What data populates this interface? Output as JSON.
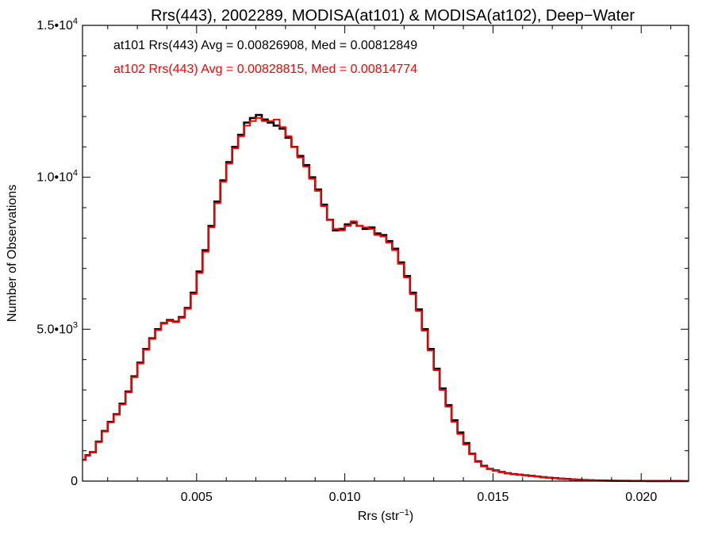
{
  "chart_data": {
    "type": "line",
    "style": "step-histogram",
    "title": "Rrs(443), 2002289, MODISA(at101) & MODISA(at102), Deep−Water",
    "xlabel_base": "Rrs (str",
    "xlabel_sup": "−1",
    "xlabel_close": ")",
    "ylabel": "Number of Observations",
    "xlim": [
      0.00115,
      0.0216
    ],
    "ylim": [
      0,
      15000
    ],
    "x_ticks": [
      {
        "value": 0.005,
        "label": "0.005"
      },
      {
        "value": 0.01,
        "label": "0.010"
      },
      {
        "value": 0.015,
        "label": "0.015"
      },
      {
        "value": 0.02,
        "label": "0.020"
      }
    ],
    "y_ticks": [
      {
        "value": 0,
        "base": "0",
        "exp": ""
      },
      {
        "value": 5000,
        "base": "5.0•10",
        "exp": "3"
      },
      {
        "value": 10000,
        "base": "1.0•10",
        "exp": "4"
      },
      {
        "value": 15000,
        "base": "1.5•10",
        "exp": "4"
      }
    ],
    "annotations": [
      {
        "text": "at101 Rrs(443) Avg = 0.00826908, Med = 0.00812849",
        "color": "#000000"
      },
      {
        "text": "at102 Rrs(443) Avg = 0.00828815, Med = 0.00814774",
        "color": "#ff0000"
      }
    ],
    "series": [
      {
        "color": "#000000",
        "points": [
          [
            0.0012,
            700
          ],
          [
            0.0013,
            850
          ],
          [
            0.0015,
            950
          ],
          [
            0.0017,
            1300
          ],
          [
            0.0019,
            1650
          ],
          [
            0.0021,
            1950
          ],
          [
            0.0023,
            2200
          ],
          [
            0.0025,
            2550
          ],
          [
            0.0027,
            2950
          ],
          [
            0.0029,
            3450
          ],
          [
            0.0031,
            3900
          ],
          [
            0.0033,
            4350
          ],
          [
            0.0035,
            4700
          ],
          [
            0.0037,
            5000
          ],
          [
            0.0039,
            5200
          ],
          [
            0.0041,
            5300
          ],
          [
            0.0043,
            5250
          ],
          [
            0.0045,
            5400
          ],
          [
            0.0047,
            5700
          ],
          [
            0.0049,
            6200
          ],
          [
            0.0051,
            6900
          ],
          [
            0.0053,
            7600
          ],
          [
            0.0055,
            8400
          ],
          [
            0.0057,
            9200
          ],
          [
            0.0059,
            9900
          ],
          [
            0.0061,
            10500
          ],
          [
            0.0063,
            11000
          ],
          [
            0.0065,
            11400
          ],
          [
            0.0067,
            11800
          ],
          [
            0.0069,
            11950
          ],
          [
            0.0071,
            12050
          ],
          [
            0.0073,
            11900
          ],
          [
            0.0075,
            11800
          ],
          [
            0.0077,
            11700
          ],
          [
            0.0079,
            11600
          ],
          [
            0.0081,
            11300
          ],
          [
            0.0083,
            11000
          ],
          [
            0.0085,
            10700
          ],
          [
            0.0087,
            10400
          ],
          [
            0.0089,
            10000
          ],
          [
            0.0091,
            9600
          ],
          [
            0.0093,
            9100
          ],
          [
            0.0095,
            8600
          ],
          [
            0.0097,
            8250
          ],
          [
            0.0099,
            8300
          ],
          [
            0.0101,
            8450
          ],
          [
            0.0103,
            8500
          ],
          [
            0.0105,
            8400
          ],
          [
            0.0107,
            8300
          ],
          [
            0.0109,
            8350
          ],
          [
            0.0111,
            8150
          ],
          [
            0.0113,
            8100
          ],
          [
            0.0115,
            7900
          ],
          [
            0.0117,
            7650
          ],
          [
            0.0119,
            7200
          ],
          [
            0.0121,
            6750
          ],
          [
            0.0123,
            6200
          ],
          [
            0.0125,
            5650
          ],
          [
            0.0127,
            5000
          ],
          [
            0.0129,
            4350
          ],
          [
            0.0131,
            3700
          ],
          [
            0.0133,
            3050
          ],
          [
            0.0135,
            2500
          ],
          [
            0.0137,
            2000
          ],
          [
            0.0139,
            1600
          ],
          [
            0.0141,
            1250
          ],
          [
            0.0143,
            900
          ],
          [
            0.0145,
            650
          ],
          [
            0.0147,
            500
          ],
          [
            0.0149,
            400
          ],
          [
            0.0151,
            350
          ],
          [
            0.0153,
            300
          ],
          [
            0.0155,
            260
          ],
          [
            0.0157,
            230
          ],
          [
            0.0159,
            210
          ],
          [
            0.0161,
            190
          ],
          [
            0.0163,
            170
          ],
          [
            0.0165,
            150
          ],
          [
            0.0167,
            130
          ],
          [
            0.0169,
            110
          ],
          [
            0.0171,
            95
          ],
          [
            0.0173,
            80
          ],
          [
            0.0175,
            70
          ],
          [
            0.0177,
            55
          ],
          [
            0.0179,
            45
          ],
          [
            0.0181,
            35
          ],
          [
            0.0183,
            28
          ],
          [
            0.0185,
            22
          ],
          [
            0.0187,
            18
          ],
          [
            0.0189,
            14
          ],
          [
            0.0191,
            11
          ],
          [
            0.0193,
            9
          ],
          [
            0.0195,
            7
          ],
          [
            0.0197,
            5
          ],
          [
            0.0199,
            4
          ],
          [
            0.0201,
            3
          ],
          [
            0.0203,
            2
          ],
          [
            0.0205,
            2
          ],
          [
            0.0207,
            1
          ],
          [
            0.0209,
            1
          ],
          [
            0.0211,
            1
          ],
          [
            0.0213,
            1
          ],
          [
            0.0215,
            0
          ]
        ]
      },
      {
        "color": "#ff0000",
        "points": [
          [
            0.0012,
            690
          ],
          [
            0.0013,
            830
          ],
          [
            0.0015,
            940
          ],
          [
            0.0017,
            1280
          ],
          [
            0.0019,
            1630
          ],
          [
            0.0021,
            1930
          ],
          [
            0.0023,
            2180
          ],
          [
            0.0025,
            2520
          ],
          [
            0.0027,
            2920
          ],
          [
            0.0029,
            3420
          ],
          [
            0.0031,
            3870
          ],
          [
            0.0033,
            4320
          ],
          [
            0.0035,
            4680
          ],
          [
            0.0037,
            4970
          ],
          [
            0.0039,
            5180
          ],
          [
            0.0041,
            5270
          ],
          [
            0.0043,
            5230
          ],
          [
            0.0045,
            5370
          ],
          [
            0.0047,
            5670
          ],
          [
            0.0049,
            6160
          ],
          [
            0.0051,
            6850
          ],
          [
            0.0053,
            7550
          ],
          [
            0.0055,
            8350
          ],
          [
            0.0057,
            9150
          ],
          [
            0.0059,
            9850
          ],
          [
            0.0061,
            10450
          ],
          [
            0.0063,
            10950
          ],
          [
            0.0065,
            11350
          ],
          [
            0.0067,
            11700
          ],
          [
            0.0069,
            11850
          ],
          [
            0.0071,
            11950
          ],
          [
            0.0073,
            11850
          ],
          [
            0.0075,
            11850
          ],
          [
            0.0077,
            11900
          ],
          [
            0.0079,
            11650
          ],
          [
            0.0081,
            11350
          ],
          [
            0.0083,
            11000
          ],
          [
            0.0085,
            10650
          ],
          [
            0.0087,
            10350
          ],
          [
            0.0089,
            9950
          ],
          [
            0.0091,
            9550
          ],
          [
            0.0093,
            9050
          ],
          [
            0.0095,
            8600
          ],
          [
            0.0097,
            8300
          ],
          [
            0.0099,
            8250
          ],
          [
            0.0101,
            8400
          ],
          [
            0.0103,
            8550
          ],
          [
            0.0105,
            8400
          ],
          [
            0.0107,
            8350
          ],
          [
            0.0109,
            8300
          ],
          [
            0.0111,
            8100
          ],
          [
            0.0113,
            8050
          ],
          [
            0.0115,
            7850
          ],
          [
            0.0117,
            7600
          ],
          [
            0.0119,
            7150
          ],
          [
            0.0121,
            6700
          ],
          [
            0.0123,
            6150
          ],
          [
            0.0125,
            5600
          ],
          [
            0.0127,
            4950
          ],
          [
            0.0129,
            4300
          ],
          [
            0.0131,
            3650
          ],
          [
            0.0133,
            3000
          ],
          [
            0.0135,
            2450
          ],
          [
            0.0137,
            1950
          ],
          [
            0.0139,
            1550
          ],
          [
            0.0141,
            1200
          ],
          [
            0.0143,
            880
          ],
          [
            0.0145,
            630
          ],
          [
            0.0147,
            480
          ],
          [
            0.0149,
            390
          ],
          [
            0.0151,
            340
          ],
          [
            0.0153,
            290
          ],
          [
            0.0155,
            250
          ],
          [
            0.0157,
            225
          ],
          [
            0.0159,
            205
          ],
          [
            0.0161,
            185
          ],
          [
            0.0163,
            165
          ],
          [
            0.0165,
            145
          ],
          [
            0.0167,
            125
          ],
          [
            0.0169,
            108
          ],
          [
            0.0171,
            92
          ],
          [
            0.0173,
            78
          ],
          [
            0.0175,
            66
          ],
          [
            0.0177,
            52
          ],
          [
            0.0179,
            42
          ],
          [
            0.0181,
            33
          ],
          [
            0.0183,
            26
          ],
          [
            0.0185,
            20
          ],
          [
            0.0187,
            16
          ],
          [
            0.0189,
            13
          ],
          [
            0.0191,
            10
          ],
          [
            0.0193,
            8
          ],
          [
            0.0195,
            6
          ],
          [
            0.0197,
            5
          ],
          [
            0.0199,
            4
          ],
          [
            0.0201,
            3
          ],
          [
            0.0203,
            2
          ],
          [
            0.0205,
            2
          ],
          [
            0.0207,
            1
          ],
          [
            0.0209,
            1
          ],
          [
            0.0211,
            1
          ],
          [
            0.0213,
            1
          ],
          [
            0.0215,
            0
          ]
        ]
      }
    ]
  }
}
